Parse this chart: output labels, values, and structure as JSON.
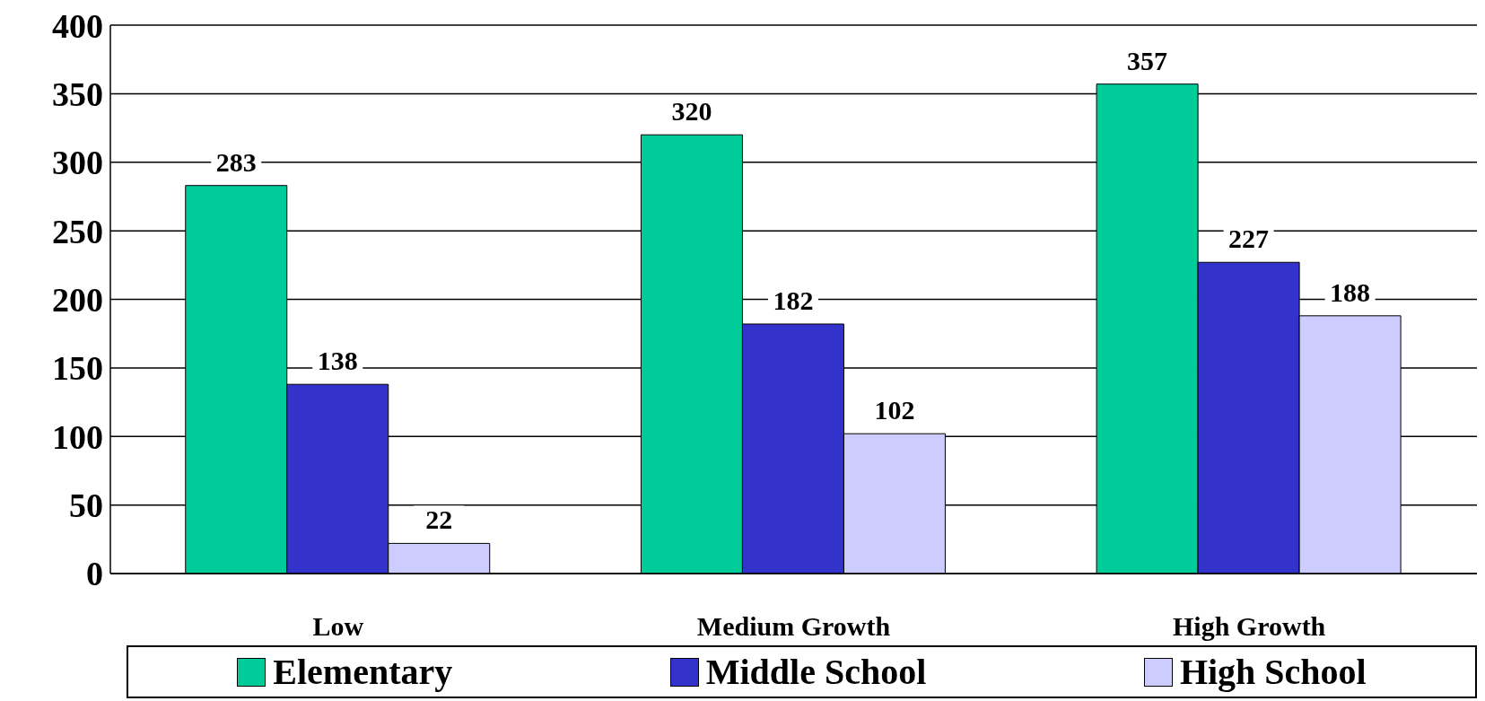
{
  "chart_data": {
    "type": "bar",
    "categories": [
      "Low",
      "Medium Growth",
      "High Growth"
    ],
    "series": [
      {
        "name": "Elementary",
        "color": "#00cc99",
        "values": [
          283,
          320,
          357
        ]
      },
      {
        "name": "Middle School",
        "color": "#3333cc",
        "values": [
          138,
          182,
          227
        ]
      },
      {
        "name": "High School",
        "color": "#ccccff",
        "values": [
          22,
          102,
          188
        ]
      }
    ],
    "ylim": [
      0,
      400
    ],
    "yticks": [
      0,
      50,
      100,
      150,
      200,
      250,
      300,
      350,
      400
    ],
    "grid": "y",
    "legend": "bottom",
    "data_labels": true
  }
}
